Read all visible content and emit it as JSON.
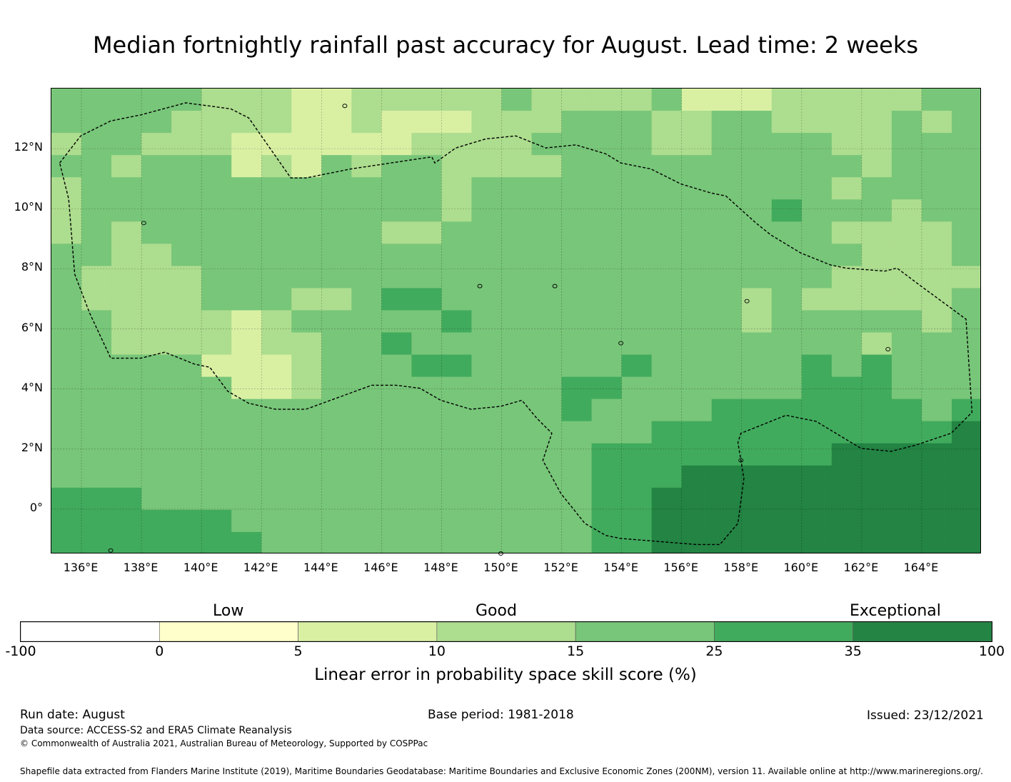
{
  "title": "Median fortnightly rainfall past accuracy for August. Lead time: 2 weeks",
  "map": {
    "lon_range": [
      135,
      166
    ],
    "lat_range": [
      -1.5,
      14
    ],
    "x_ticks": [
      "136°E",
      "138°E",
      "140°E",
      "142°E",
      "144°E",
      "146°E",
      "148°E",
      "150°E",
      "152°E",
      "154°E",
      "156°E",
      "158°E",
      "160°E",
      "162°E",
      "164°E"
    ],
    "y_ticks": [
      "12°N",
      "10°N",
      "8°N",
      "6°N",
      "4°N",
      "2°N",
      "0°"
    ],
    "colors": {
      "below_0": "#ffffff",
      "c0_5": "#ffffcc",
      "c5_10": "#d9f0a3",
      "c10_15": "#addd8e",
      "c15_25": "#78c679",
      "c25_35": "#41ab5d",
      "c35_100": "#238443"
    },
    "boundary": "Exclusive Economic Zone (dashed)"
  },
  "colorbar": {
    "categories": [
      "Low",
      "Good",
      "Exceptional"
    ],
    "ticks": [
      "-100",
      "0",
      "5",
      "10",
      "15",
      "25",
      "35",
      "100"
    ],
    "colors": [
      "#ffffff",
      "#ffffcc",
      "#d9f0a3",
      "#addd8e",
      "#78c679",
      "#41ab5d",
      "#238443"
    ],
    "label": "Linear error in probability space skill score (%)"
  },
  "footer": {
    "run_date": "Run date: August",
    "base_period": "Base period: 1981-2018",
    "issued": "Issued: 23/12/2021",
    "data_source": "Data source: ACCESS-S2 and ERA5 Climate Reanalysis",
    "copyright": "© Commonwealth of Australia 2021, Australian Bureau of Meteorology, Supported by COSPPac",
    "shapefile": "Shapefile data extracted from Flanders Marine Institute (2019), Maritime Boundaries Geodatabase: Maritime Boundaries and Exclusive Economic Zones (200NM), version 11. Available online at http://www.marineregions.org/."
  }
}
